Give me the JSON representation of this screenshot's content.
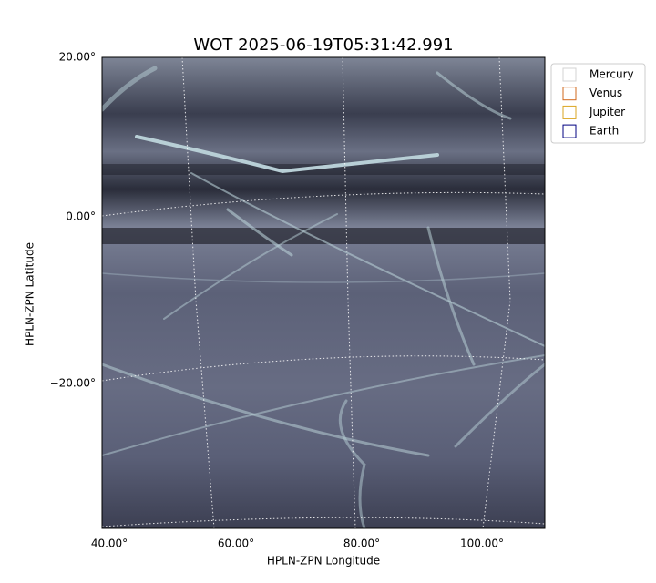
{
  "title": "WOT 2025-06-19T05:31:42.991",
  "axes": {
    "xlabel": "HPLN-ZPN Longitude",
    "ylabel": "HPLN-ZPN Latitude",
    "xticks": [
      "40.00°",
      "60.00°",
      "80.00°",
      "100.00°"
    ],
    "yticks": [
      "20.00°",
      "0.00°",
      "−20.00°"
    ]
  },
  "legend": [
    {
      "name": "Mercury",
      "color": "#d3d3d3"
    },
    {
      "name": "Venus",
      "color": "#d2691e"
    },
    {
      "name": "Jupiter",
      "color": "#daa520"
    },
    {
      "name": "Earth",
      "color": "#000080"
    }
  ]
}
